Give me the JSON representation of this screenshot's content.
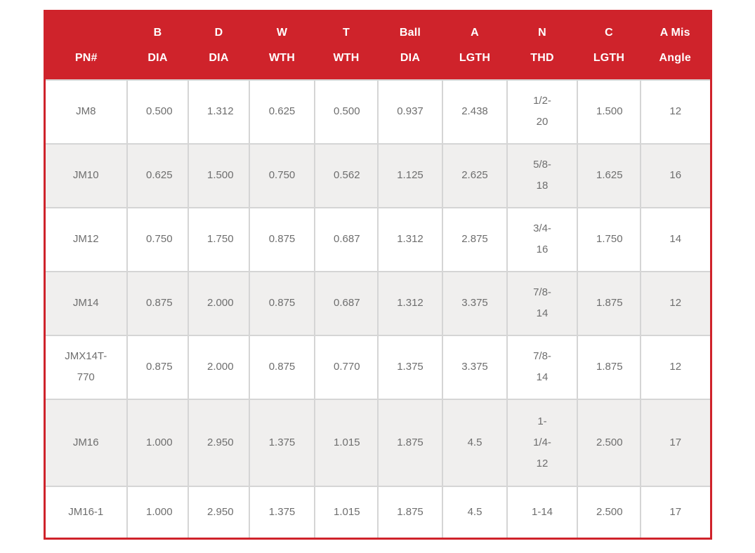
{
  "colors": {
    "header_bg": "#cf232b",
    "header_text": "#ffffff",
    "row_alt_bg": "#f0efee",
    "cell_text": "#6e6e6e",
    "grid_line": "#d5d5d5"
  },
  "table": {
    "columns": [
      {
        "id": "pn",
        "line1": "",
        "line2": "PN#"
      },
      {
        "id": "b_dia",
        "line1": "B",
        "line2": "DIA"
      },
      {
        "id": "d_dia",
        "line1": "D",
        "line2": "DIA"
      },
      {
        "id": "w_wth",
        "line1": "W",
        "line2": "WTH"
      },
      {
        "id": "t_wth",
        "line1": "T",
        "line2": "WTH"
      },
      {
        "id": "ball_dia",
        "line1": "Ball",
        "line2": "DIA"
      },
      {
        "id": "a_lgth",
        "line1": "A",
        "line2": "LGTH"
      },
      {
        "id": "n_thd",
        "line1": "N",
        "line2": "THD"
      },
      {
        "id": "c_lgth",
        "line1": "C",
        "line2": "LGTH"
      },
      {
        "id": "a_mis_angle",
        "line1": "A Mis",
        "line2": "Angle"
      }
    ],
    "rows": [
      {
        "pn": "JM8",
        "b_dia": "0.500",
        "d_dia": "1.312",
        "w_wth": "0.625",
        "t_wth": "0.500",
        "ball_dia": "0.937",
        "a_lgth": "2.438",
        "n_thd": "1/2-20",
        "c_lgth": "1.500",
        "a_mis_angle": "12"
      },
      {
        "pn": "JM10",
        "b_dia": "0.625",
        "d_dia": "1.500",
        "w_wth": "0.750",
        "t_wth": "0.562",
        "ball_dia": "1.125",
        "a_lgth": "2.625",
        "n_thd": "5/8-18",
        "c_lgth": "1.625",
        "a_mis_angle": "16"
      },
      {
        "pn": "JM12",
        "b_dia": "0.750",
        "d_dia": "1.750",
        "w_wth": "0.875",
        "t_wth": "0.687",
        "ball_dia": "1.312",
        "a_lgth": "2.875",
        "n_thd": "3/4-16",
        "c_lgth": "1.750",
        "a_mis_angle": "14"
      },
      {
        "pn": "JM14",
        "b_dia": "0.875",
        "d_dia": "2.000",
        "w_wth": "0.875",
        "t_wth": "0.687",
        "ball_dia": "1.312",
        "a_lgth": "3.375",
        "n_thd": "7/8-14",
        "c_lgth": "1.875",
        "a_mis_angle": "12"
      },
      {
        "pn": "JMX14T-770",
        "b_dia": "0.875",
        "d_dia": "2.000",
        "w_wth": "0.875",
        "t_wth": "0.770",
        "ball_dia": "1.375",
        "a_lgth": "3.375",
        "n_thd": "7/8-14",
        "c_lgth": "1.875",
        "a_mis_angle": "12"
      },
      {
        "pn": "JM16",
        "b_dia": "1.000",
        "d_dia": "2.950",
        "w_wth": "1.375",
        "t_wth": "1.015",
        "ball_dia": "1.875",
        "a_lgth": "4.5",
        "n_thd": "1-1/4-12",
        "c_lgth": "2.500",
        "a_mis_angle": "17"
      },
      {
        "pn": "JM16-1",
        "b_dia": "1.000",
        "d_dia": "2.950",
        "w_wth": "1.375",
        "t_wth": "1.015",
        "ball_dia": "1.875",
        "a_lgth": "4.5",
        "n_thd": "1-14",
        "c_lgth": "2.500",
        "a_mis_angle": "17"
      }
    ]
  }
}
